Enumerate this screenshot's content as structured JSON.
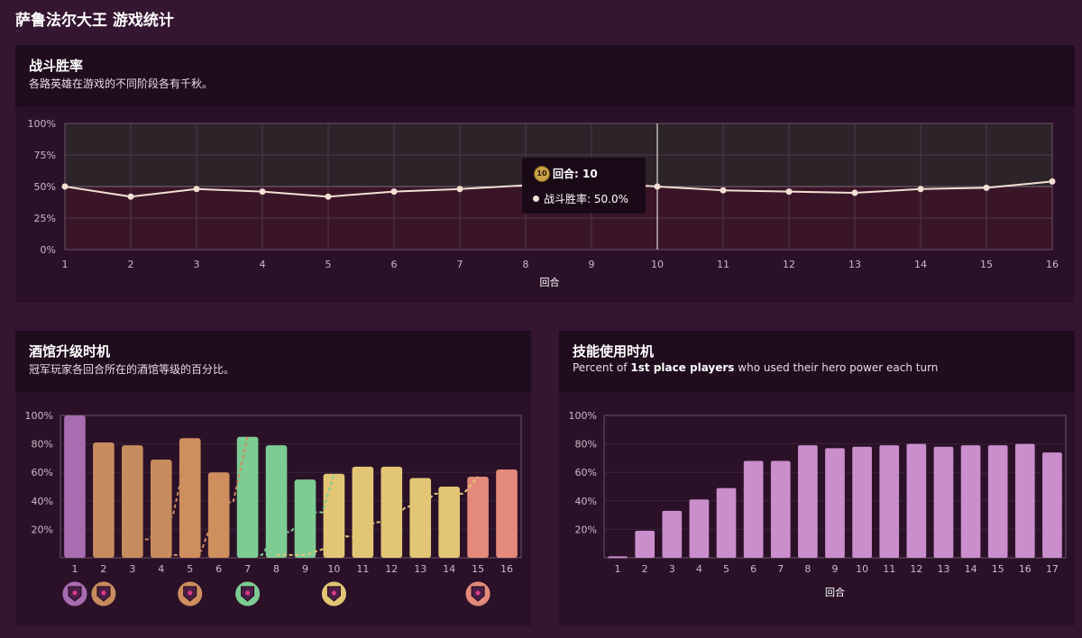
{
  "page_title": "萨鲁法尔大王 游戏统计",
  "colors": {
    "background": "#351631",
    "panel": "#2a1128",
    "panel_header": "#1f0c1d",
    "winrate_line": "#f3e0d4",
    "hero_power_bar": "#c98ecb",
    "tavern_tiers": [
      "#a86cb0",
      "#c78c5e",
      "#cf8e5e",
      "#7ecb94",
      "#e2c675",
      "#e38a7b",
      "#a6bfe6"
    ]
  },
  "winrate_panel": {
    "title": "战斗胜率",
    "subtitle": "各路英雄在游戏的不同阶段各有千秋。",
    "tooltip": {
      "turn_badge": "10",
      "turn_label": "回合: 10",
      "rate_label": "战斗胜率: 50.0%"
    }
  },
  "tavern_panel": {
    "title": "酒馆升级时机",
    "subtitle": "冠军玩家各回合所在的酒馆等级的百分比。"
  },
  "hero_power_panel": {
    "title": "技能使用时机",
    "subtitle_pre": "Percent of ",
    "subtitle_bold": "1st place players",
    "subtitle_post": " who used their hero power each turn"
  },
  "chart_data": [
    {
      "type": "line",
      "title": "战斗胜率",
      "xlabel": "回合",
      "ylabel": "",
      "x": [
        1,
        2,
        3,
        4,
        5,
        6,
        7,
        8,
        9,
        10,
        11,
        12,
        13,
        14,
        15,
        16
      ],
      "series": [
        {
          "values": [
            50,
            42,
            48,
            46,
            42,
            46,
            48,
            51,
            53,
            50,
            47,
            46,
            45,
            48,
            49,
            54
          ]
        }
      ],
      "ylim": [
        0,
        100
      ],
      "ytick_labels": [
        "0%",
        "25%",
        "50%",
        "75%",
        "100%"
      ],
      "grid": true,
      "highlight_x": 10
    },
    {
      "type": "bar",
      "title": "酒馆升级时机",
      "categories": [
        "1",
        "2",
        "3",
        "4",
        "5",
        "6",
        "7",
        "8",
        "9",
        "10",
        "11",
        "12",
        "13",
        "14",
        "15",
        "16"
      ],
      "values": [
        100,
        81,
        79,
        69,
        84,
        60,
        85,
        79,
        55,
        59,
        64,
        64,
        56,
        50,
        57,
        62
      ],
      "bar_tier_index": [
        0,
        1,
        1,
        1,
        2,
        2,
        3,
        3,
        3,
        4,
        4,
        4,
        4,
        4,
        5,
        5
      ],
      "tier_transition_lines": [
        {
          "tier_index": 1,
          "x": [
            3,
            3.6,
            4,
            4.4,
            5
          ],
          "values": [
            13,
            13,
            29,
            29,
            84
          ]
        },
        {
          "tier_index": 2,
          "x": [
            4,
            4.6,
            5,
            5.4,
            6,
            6.5,
            7
          ],
          "values": [
            2,
            2,
            5,
            5,
            39,
            39,
            85
          ]
        },
        {
          "tier_index": 3,
          "x": [
            7,
            7.5,
            8,
            8.5,
            9,
            9.6,
            10
          ],
          "values": [
            2,
            2,
            18,
            18,
            32,
            32,
            59
          ]
        },
        {
          "tier_index": 4,
          "x": [
            8,
            9,
            9.6,
            10,
            10.4,
            11,
            11.4,
            12,
            12.5,
            13,
            13.5,
            14,
            14.5,
            15
          ],
          "values": [
            2,
            2,
            6,
            6,
            15,
            15,
            25,
            25,
            36,
            36,
            45,
            45,
            45,
            57
          ]
        }
      ],
      "tier_badge_turns": [
        1,
        2,
        5,
        7,
        10,
        15
      ],
      "ylim": [
        0,
        100
      ],
      "ytick_labels": [
        "20%",
        "40%",
        "60%",
        "80%",
        "100%"
      ]
    },
    {
      "type": "bar",
      "title": "技能使用时机",
      "xlabel": "回合",
      "categories": [
        "1",
        "2",
        "3",
        "4",
        "5",
        "6",
        "7",
        "8",
        "9",
        "10",
        "11",
        "12",
        "13",
        "14",
        "15",
        "16",
        "17"
      ],
      "values": [
        1,
        19,
        33,
        41,
        49,
        68,
        68,
        79,
        77,
        78,
        79,
        80,
        78,
        79,
        79,
        80,
        74
      ],
      "ylim": [
        0,
        100
      ],
      "ytick_labels": [
        "20%",
        "40%",
        "60%",
        "80%",
        "100%"
      ]
    }
  ]
}
